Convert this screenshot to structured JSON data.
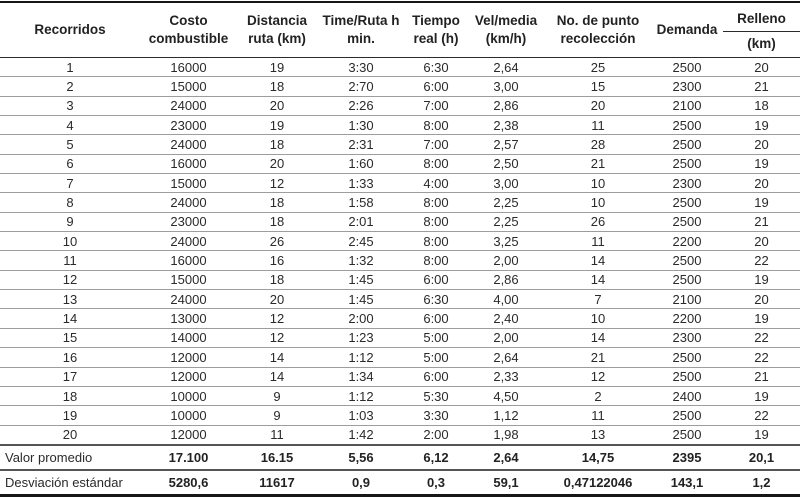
{
  "table": {
    "headers": [
      {
        "label": "Recorridos"
      },
      {
        "label": "Costo combustible"
      },
      {
        "label": "Distancia ruta (km)"
      },
      {
        "label": "Time/Ruta h min."
      },
      {
        "label": "Tiempo real (h)"
      },
      {
        "label": "Vel/media (km/h)"
      },
      {
        "label": "No. de punto recolección"
      },
      {
        "label": "Demanda"
      },
      {
        "label": "Relleno",
        "sub_label": "(km)"
      }
    ],
    "rows": [
      [
        "1",
        "16000",
        "19",
        "3:30",
        "6:30",
        "2,64",
        "25",
        "2500",
        "20"
      ],
      [
        "2",
        "15000",
        "18",
        "2:70",
        "6:00",
        "3,00",
        "15",
        "2300",
        "21"
      ],
      [
        "3",
        "24000",
        "20",
        "2:26",
        "7:00",
        "2,86",
        "20",
        "2100",
        "18"
      ],
      [
        "4",
        "23000",
        "19",
        "1:30",
        "8:00",
        "2,38",
        "11",
        "2500",
        "19"
      ],
      [
        "5",
        "24000",
        "18",
        "2:31",
        "7:00",
        "2,57",
        "28",
        "2500",
        "20"
      ],
      [
        "6",
        "16000",
        "20",
        "1:60",
        "8:00",
        "2,50",
        "21",
        "2500",
        "19"
      ],
      [
        "7",
        "15000",
        "12",
        "1:33",
        "4:00",
        "3,00",
        "10",
        "2300",
        "20"
      ],
      [
        "8",
        "24000",
        "18",
        "1:58",
        "8:00",
        "2,25",
        "10",
        "2500",
        "19"
      ],
      [
        "9",
        "23000",
        "18",
        "2:01",
        "8:00",
        "2,25",
        "26",
        "2500",
        "21"
      ],
      [
        "10",
        "24000",
        "26",
        "2:45",
        "8:00",
        "3,25",
        "11",
        "2200",
        "20"
      ],
      [
        "11",
        "16000",
        "16",
        "1:32",
        "8:00",
        "2,00",
        "14",
        "2500",
        "22"
      ],
      [
        "12",
        "15000",
        "18",
        "1:45",
        "6:00",
        "2,86",
        "14",
        "2500",
        "19"
      ],
      [
        "13",
        "24000",
        "20",
        "1:45",
        "6:30",
        "4,00",
        "7",
        "2100",
        "20"
      ],
      [
        "14",
        "13000",
        "12",
        "2:00",
        "6:00",
        "2,40",
        "10",
        "2200",
        "19"
      ],
      [
        "15",
        "14000",
        "12",
        "1:23",
        "5:00",
        "2,00",
        "14",
        "2300",
        "22"
      ],
      [
        "16",
        "12000",
        "14",
        "1:12",
        "5:00",
        "2,64",
        "21",
        "2500",
        "22"
      ],
      [
        "17",
        "12000",
        "14",
        "1:34",
        "6:00",
        "2,33",
        "12",
        "2500",
        "21"
      ],
      [
        "18",
        "10000",
        "9",
        "1:12",
        "5:30",
        "4,50",
        "2",
        "2400",
        "19"
      ],
      [
        "19",
        "10000",
        "9",
        "1:03",
        "3:30",
        "1,12",
        "11",
        "2500",
        "22"
      ],
      [
        "20",
        "12000",
        "11",
        "1:42",
        "2:00",
        "1,98",
        "13",
        "2500",
        "19"
      ]
    ],
    "footer_rows": [
      {
        "label": "Valor promedio",
        "values": [
          "17.100",
          "16.15",
          "5,56",
          "6,12",
          "2,64",
          "14,75",
          "2395",
          "20,1"
        ]
      },
      {
        "label": "Desviación estándar",
        "values": [
          "5280,6",
          "11617",
          "0,9",
          "0,3",
          "59,1",
          "0,47122046",
          "143,1",
          "1,2"
        ]
      }
    ]
  },
  "colors": {
    "text": "#262626",
    "row_line": "#9d9d9d",
    "strong_line": "#161616"
  }
}
